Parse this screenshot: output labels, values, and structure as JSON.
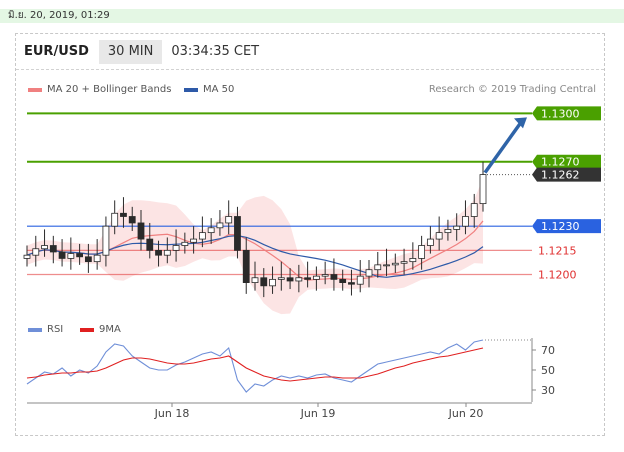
{
  "topbar": {
    "datetime": "มิ.ย. 20, 2019, 01:29"
  },
  "header": {
    "pair": "EUR/USD",
    "timeframe": "30 MIN",
    "countdown": "03:34:35 CET"
  },
  "legend": {
    "ma20_label": "MA 20 + Bollinger Bands",
    "ma20_color": "#f08080",
    "ma50_label": "MA 50",
    "ma50_color": "#2e5aa8",
    "credit": "Research © 2019 Trading Central"
  },
  "rsi_legend": {
    "rsi_label": "RSI",
    "rsi_color": "#6f8fd8",
    "ma9_label": "9MA",
    "ma9_color": "#e02020"
  },
  "chart_data": [
    {
      "type": "candlestick",
      "title": "EUR/USD 30 MIN",
      "x_tick_labels": [
        "Jun 18",
        "Jun 19",
        "Jun 20"
      ],
      "ylim": [
        1.1178,
        1.1312
      ],
      "grid": false,
      "series": [
        {
          "name": "MA 20 + Bollinger Bands",
          "color": "#f08080",
          "kind": "ma_with_bands"
        },
        {
          "name": "MA 50",
          "color": "#2e5aa8",
          "kind": "ma"
        }
      ],
      "sample_closes": [
        1.1212,
        1.1216,
        1.1218,
        1.1214,
        1.121,
        1.1213,
        1.1211,
        1.1208,
        1.1212,
        1.123,
        1.1238,
        1.1236,
        1.1232,
        1.1222,
        1.1215,
        1.1212,
        1.1215,
        1.1218,
        1.122,
        1.1222,
        1.1226,
        1.1229,
        1.1232,
        1.1236,
        1.1215,
        1.1195,
        1.1198,
        1.1193,
        1.1197,
        1.1198,
        1.1196,
        1.1198,
        1.1197,
        1.1199,
        1.12,
        1.1197,
        1.1195,
        1.1194,
        1.1199,
        1.1203,
        1.1206,
        1.1206,
        1.1207,
        1.1208,
        1.121,
        1.1218,
        1.1222,
        1.1226,
        1.1228,
        1.123,
        1.1236,
        1.1244,
        1.1262
      ],
      "horizontal_levels": [
        {
          "value": 1.13,
          "label": "1.1300",
          "color": "#4aa000",
          "style": "resistance"
        },
        {
          "value": 1.127,
          "label": "1.1270",
          "color": "#4aa000",
          "style": "resistance"
        },
        {
          "value": 1.1262,
          "label": "1.1262",
          "color": "#333333",
          "style": "last-price"
        },
        {
          "value": 1.123,
          "label": "1.1230",
          "color": "#2a62e0",
          "style": "pivot"
        },
        {
          "value": 1.1215,
          "label": "1.1215",
          "color": "#e03030",
          "style": "support"
        },
        {
          "value": 1.12,
          "label": "1.1200",
          "color": "#e03030",
          "style": "support"
        }
      ],
      "forecast_arrow": {
        "from": 1.1262,
        "to": 1.13,
        "color": "#2f64a8"
      }
    },
    {
      "type": "line",
      "title": "RSI",
      "ylim": [
        20,
        80
      ],
      "y_ticks": [
        70,
        50,
        30
      ],
      "series": [
        {
          "name": "RSI",
          "color": "#6f8fd8",
          "values": [
            36,
            42,
            48,
            46,
            52,
            44,
            50,
            47,
            54,
            68,
            76,
            74,
            64,
            58,
            52,
            50,
            50,
            55,
            58,
            62,
            66,
            68,
            64,
            72,
            40,
            28,
            36,
            34,
            40,
            44,
            42,
            44,
            42,
            45,
            46,
            42,
            40,
            38,
            44,
            50,
            56,
            58,
            60,
            62,
            64,
            66,
            68,
            66,
            72,
            76,
            70,
            78,
            80
          ]
        },
        {
          "name": "9MA",
          "color": "#e02020",
          "values": [
            42,
            43,
            45,
            46,
            47,
            47,
            48,
            48,
            49,
            52,
            56,
            60,
            62,
            62,
            61,
            59,
            57,
            56,
            56,
            57,
            59,
            61,
            62,
            64,
            58,
            52,
            48,
            44,
            42,
            40,
            39,
            40,
            41,
            42,
            43,
            43,
            42,
            42,
            42,
            44,
            46,
            49,
            52,
            54,
            57,
            59,
            61,
            63,
            64,
            66,
            68,
            70,
            72
          ]
        }
      ]
    }
  ]
}
